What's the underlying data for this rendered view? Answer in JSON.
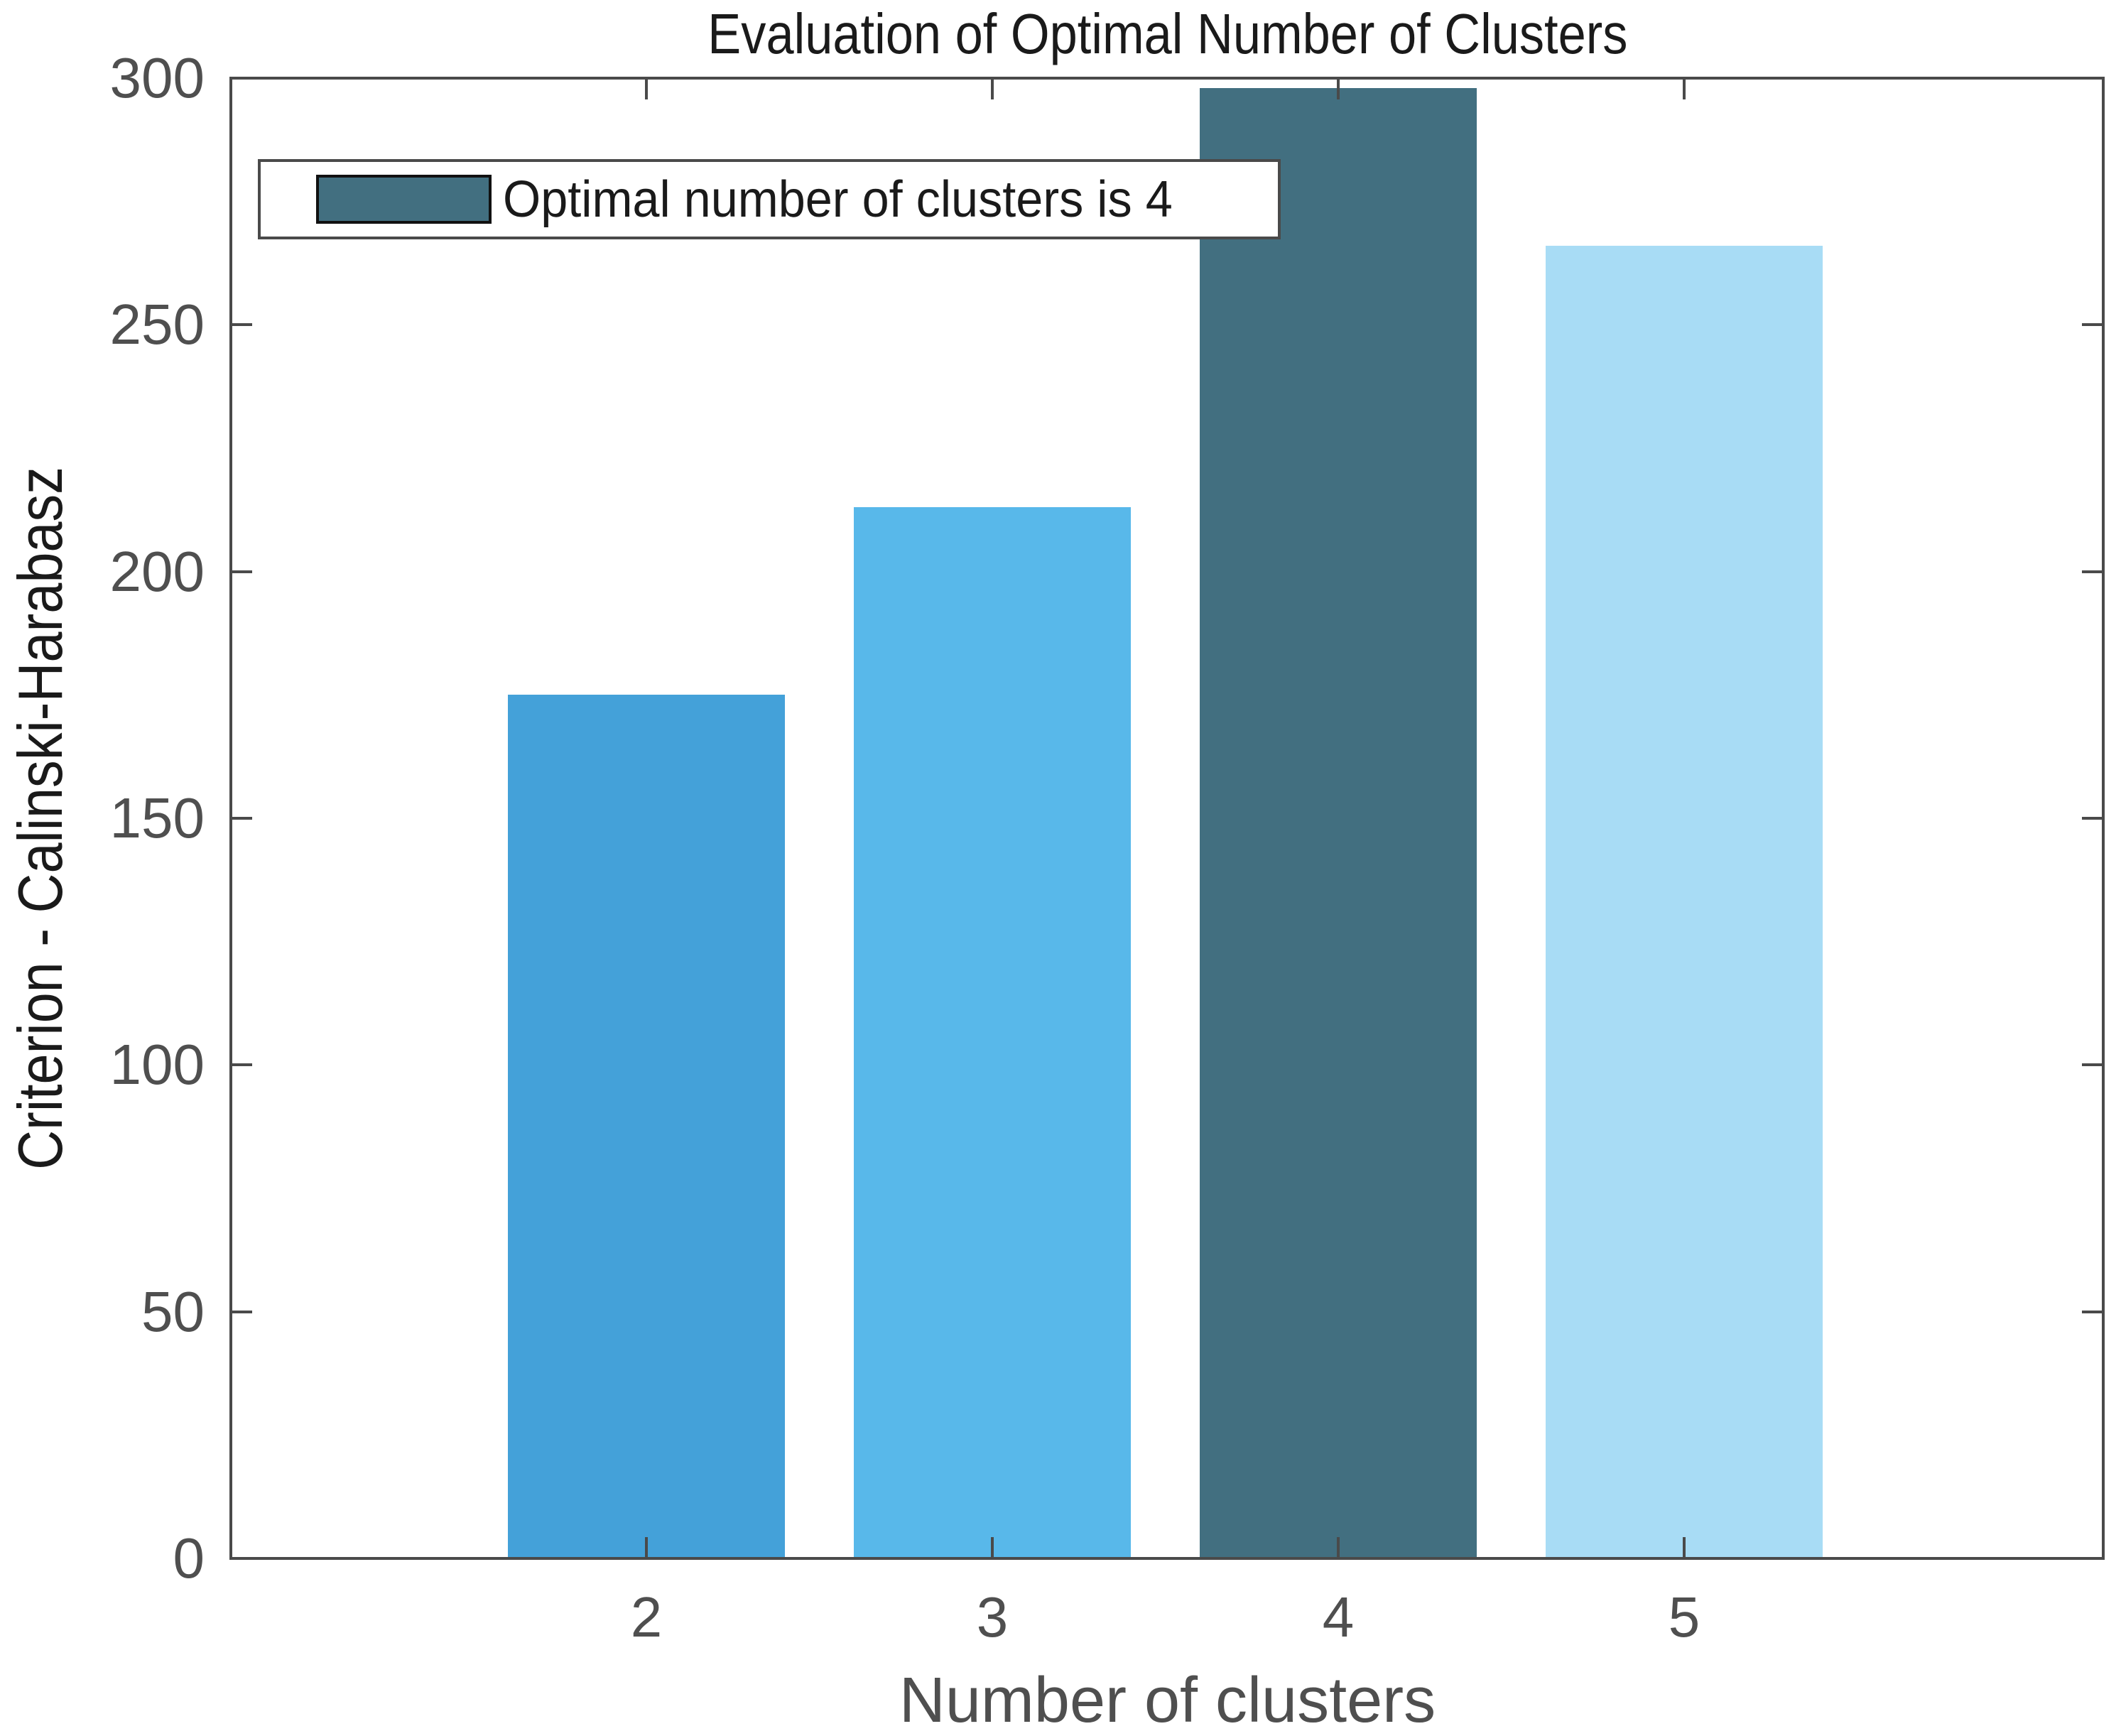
{
  "chart_data": {
    "type": "bar",
    "title": "Evaluation of Optimal Number of Clusters",
    "xlabel": "Number of clusters",
    "ylabel": "Criterion - Calinski-Harabasz",
    "categories": [
      "2",
      "3",
      "4",
      "5"
    ],
    "values": [
      175,
      213,
      298,
      266
    ],
    "bar_colors": [
      "#44A1D9",
      "#58B8EA",
      "#426F80",
      "#A8DCF5"
    ],
    "highlight_color": "#426F80",
    "optimal_clusters": 4,
    "ylim": [
      0,
      300
    ],
    "yticks": [
      0,
      50,
      100,
      150,
      200,
      250,
      300
    ],
    "grid": false,
    "background_color": "#FFFFFF",
    "axis_colors": {
      "spine": "#4A4A4A",
      "tick_labels": "#4F4F4F",
      "title_text": "#1A1A1A",
      "xlabel_text": "#4F4F4F",
      "ylabel_text": "#1A1A1A"
    },
    "legend": {
      "position": "top-left",
      "border_color": "#4A4A4A",
      "entries": [
        {
          "label": "Optimal number of clusters is 4",
          "swatch_color": "#426F80"
        }
      ]
    }
  }
}
